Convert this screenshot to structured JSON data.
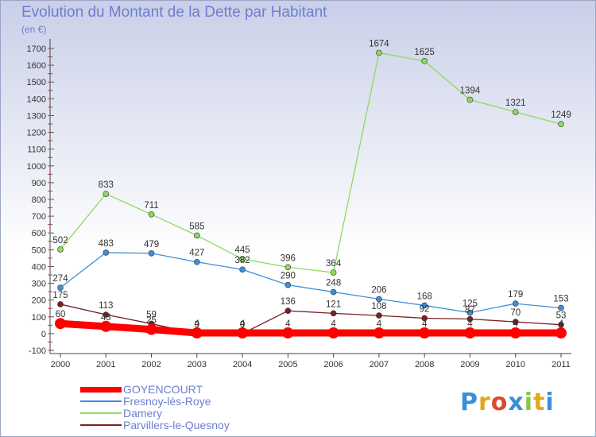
{
  "header": {
    "title": "Evolution du Montant de la Dette par Habitant",
    "unit": "(en €)"
  },
  "logo": {
    "text": "Proxiti",
    "colors": [
      "#3b8fd6",
      "#e2a81c",
      "#d94a2a",
      "#3b8fd6",
      "#8cc63f",
      "#e2a81c",
      "#3b8fd6"
    ]
  },
  "chart_data": {
    "type": "line",
    "title": "Evolution du Montant de la Dette par Habitant",
    "ylabel": "(en €)",
    "xlabel": "",
    "x": [
      "2000",
      "2001",
      "2002",
      "2003",
      "2004",
      "2005",
      "2006",
      "2007",
      "2008",
      "2009",
      "2010",
      "2011"
    ],
    "ylim": [
      -100,
      1700
    ],
    "yticks": [
      -100,
      0,
      100,
      200,
      300,
      400,
      500,
      600,
      700,
      800,
      900,
      1000,
      1100,
      1200,
      1300,
      1400,
      1500,
      1600,
      1700
    ],
    "grid": false,
    "legend": "bottom-left",
    "series": [
      {
        "name": "GOYENCOURT",
        "color": "#ff0000",
        "thick": true,
        "values": [
          60,
          43,
          25,
          4,
          4,
          4,
          4,
          4,
          4,
          4,
          4,
          4
        ],
        "labels": [
          "60",
          "43",
          "25",
          "4",
          "4",
          "4",
          "4",
          "4",
          "4",
          "4",
          "4",
          "4"
        ]
      },
      {
        "name": "Fresnoy-lès-Roye",
        "color": "#3e8fd8",
        "values": [
          274,
          483,
          479,
          427,
          382,
          290,
          248,
          206,
          168,
          125,
          179,
          153
        ],
        "labels": [
          "274",
          "483",
          "479",
          "427",
          "382",
          "290",
          "248",
          "206",
          "168",
          "125",
          "179",
          "153"
        ]
      },
      {
        "name": "Damery",
        "color": "#8ddb5b",
        "values": [
          502,
          833,
          711,
          585,
          445,
          396,
          364,
          1674,
          1625,
          1394,
          1321,
          1249
        ],
        "labels": [
          "502",
          "833",
          "711",
          "585",
          "445",
          "396",
          "364",
          "1674",
          "1625",
          "1394",
          "1321",
          "1249"
        ]
      },
      {
        "name": "Parvillers-le-Quesnoy",
        "color": "#7a1f24",
        "values": [
          175,
          113,
          59,
          0,
          0,
          136,
          121,
          108,
          92,
          87,
          70,
          53
        ],
        "labels": [
          "175",
          "113",
          "59",
          "0",
          "0",
          "136",
          "121",
          "108",
          "92",
          "87",
          "70",
          "53"
        ]
      }
    ]
  }
}
